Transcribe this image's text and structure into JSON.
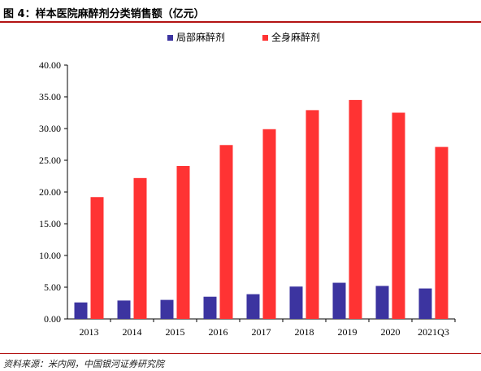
{
  "title": "图 4：样本医院麻醉剂分类销售额（亿元）",
  "source": "资料来源：米内网，中国银河证券研究院",
  "chart_data": {
    "type": "bar",
    "categories": [
      "2013",
      "2014",
      "2015",
      "2016",
      "2017",
      "2018",
      "2019",
      "2020",
      "2021Q3"
    ],
    "series": [
      {
        "name": "局部麻醉剂",
        "color": "#3c34a0",
        "values": [
          2.6,
          2.9,
          3.0,
          3.5,
          3.9,
          5.1,
          5.7,
          5.2,
          4.8
        ]
      },
      {
        "name": "全身麻醉剂",
        "color": "#ff3333",
        "values": [
          19.2,
          22.2,
          24.1,
          27.4,
          29.9,
          32.9,
          34.5,
          32.5,
          27.1
        ]
      }
    ],
    "ylim": [
      0,
      40
    ],
    "yticks": [
      "0.00",
      "5.00",
      "10.00",
      "15.00",
      "20.00",
      "25.00",
      "30.00",
      "35.00",
      "40.00"
    ],
    "legend_position": "top-center",
    "grid": false
  }
}
